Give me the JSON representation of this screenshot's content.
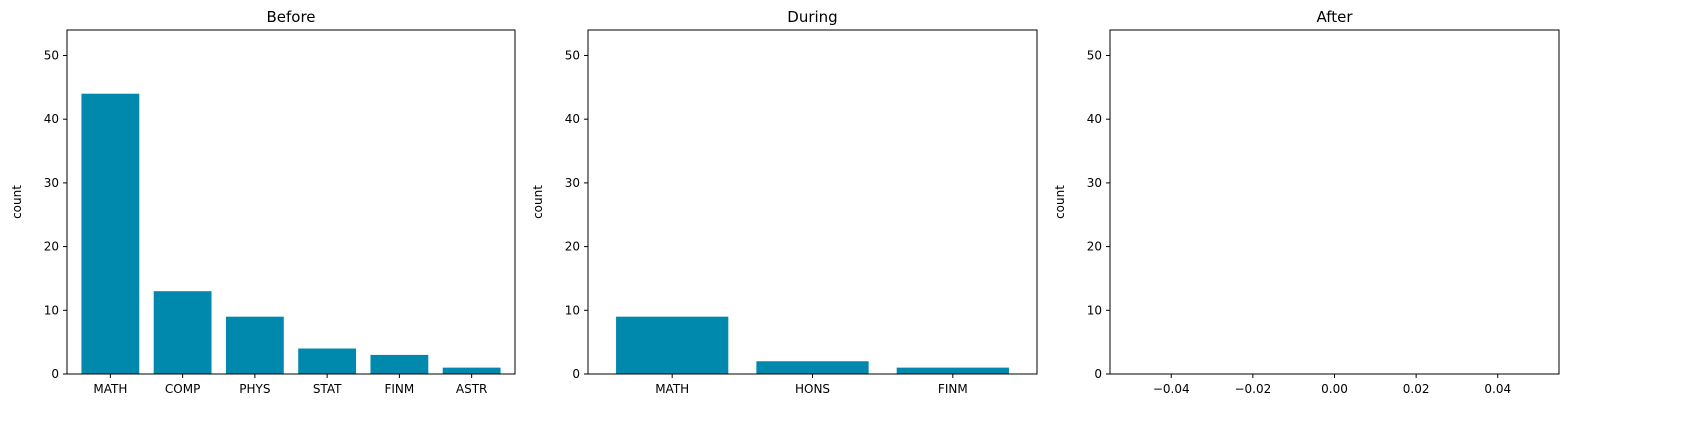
{
  "chart_data": [
    {
      "type": "bar",
      "title": "Before",
      "ylabel": "count",
      "xlabel": "",
      "ylim": [
        0,
        54
      ],
      "yticks": [
        0,
        10,
        20,
        30,
        40,
        50
      ],
      "categories": [
        "MATH",
        "COMP",
        "PHYS",
        "STAT",
        "FINM",
        "ASTR"
      ],
      "values": [
        44,
        13,
        9,
        4,
        3,
        1
      ],
      "color": "#0088ad"
    },
    {
      "type": "bar",
      "title": "During",
      "ylabel": "count",
      "xlabel": "",
      "ylim": [
        0,
        54
      ],
      "yticks": [
        0,
        10,
        20,
        30,
        40,
        50
      ],
      "categories": [
        "MATH",
        "HONS",
        "FINM"
      ],
      "values": [
        9,
        2,
        1
      ],
      "color": "#0088ad"
    },
    {
      "type": "bar",
      "title": "After",
      "ylabel": "count",
      "xlabel": "",
      "ylim": [
        0,
        54
      ],
      "yticks": [
        0,
        10,
        20,
        30,
        40,
        50
      ],
      "xlim": [
        -0.055,
        0.055
      ],
      "xtick_labels": [
        "−0.04",
        "−0.02",
        "0.00",
        "0.02",
        "0.04"
      ],
      "xtick_values": [
        -0.04,
        -0.02,
        0.0,
        0.02,
        0.04
      ],
      "categories": [],
      "values": [],
      "color": "#0088ad"
    }
  ]
}
